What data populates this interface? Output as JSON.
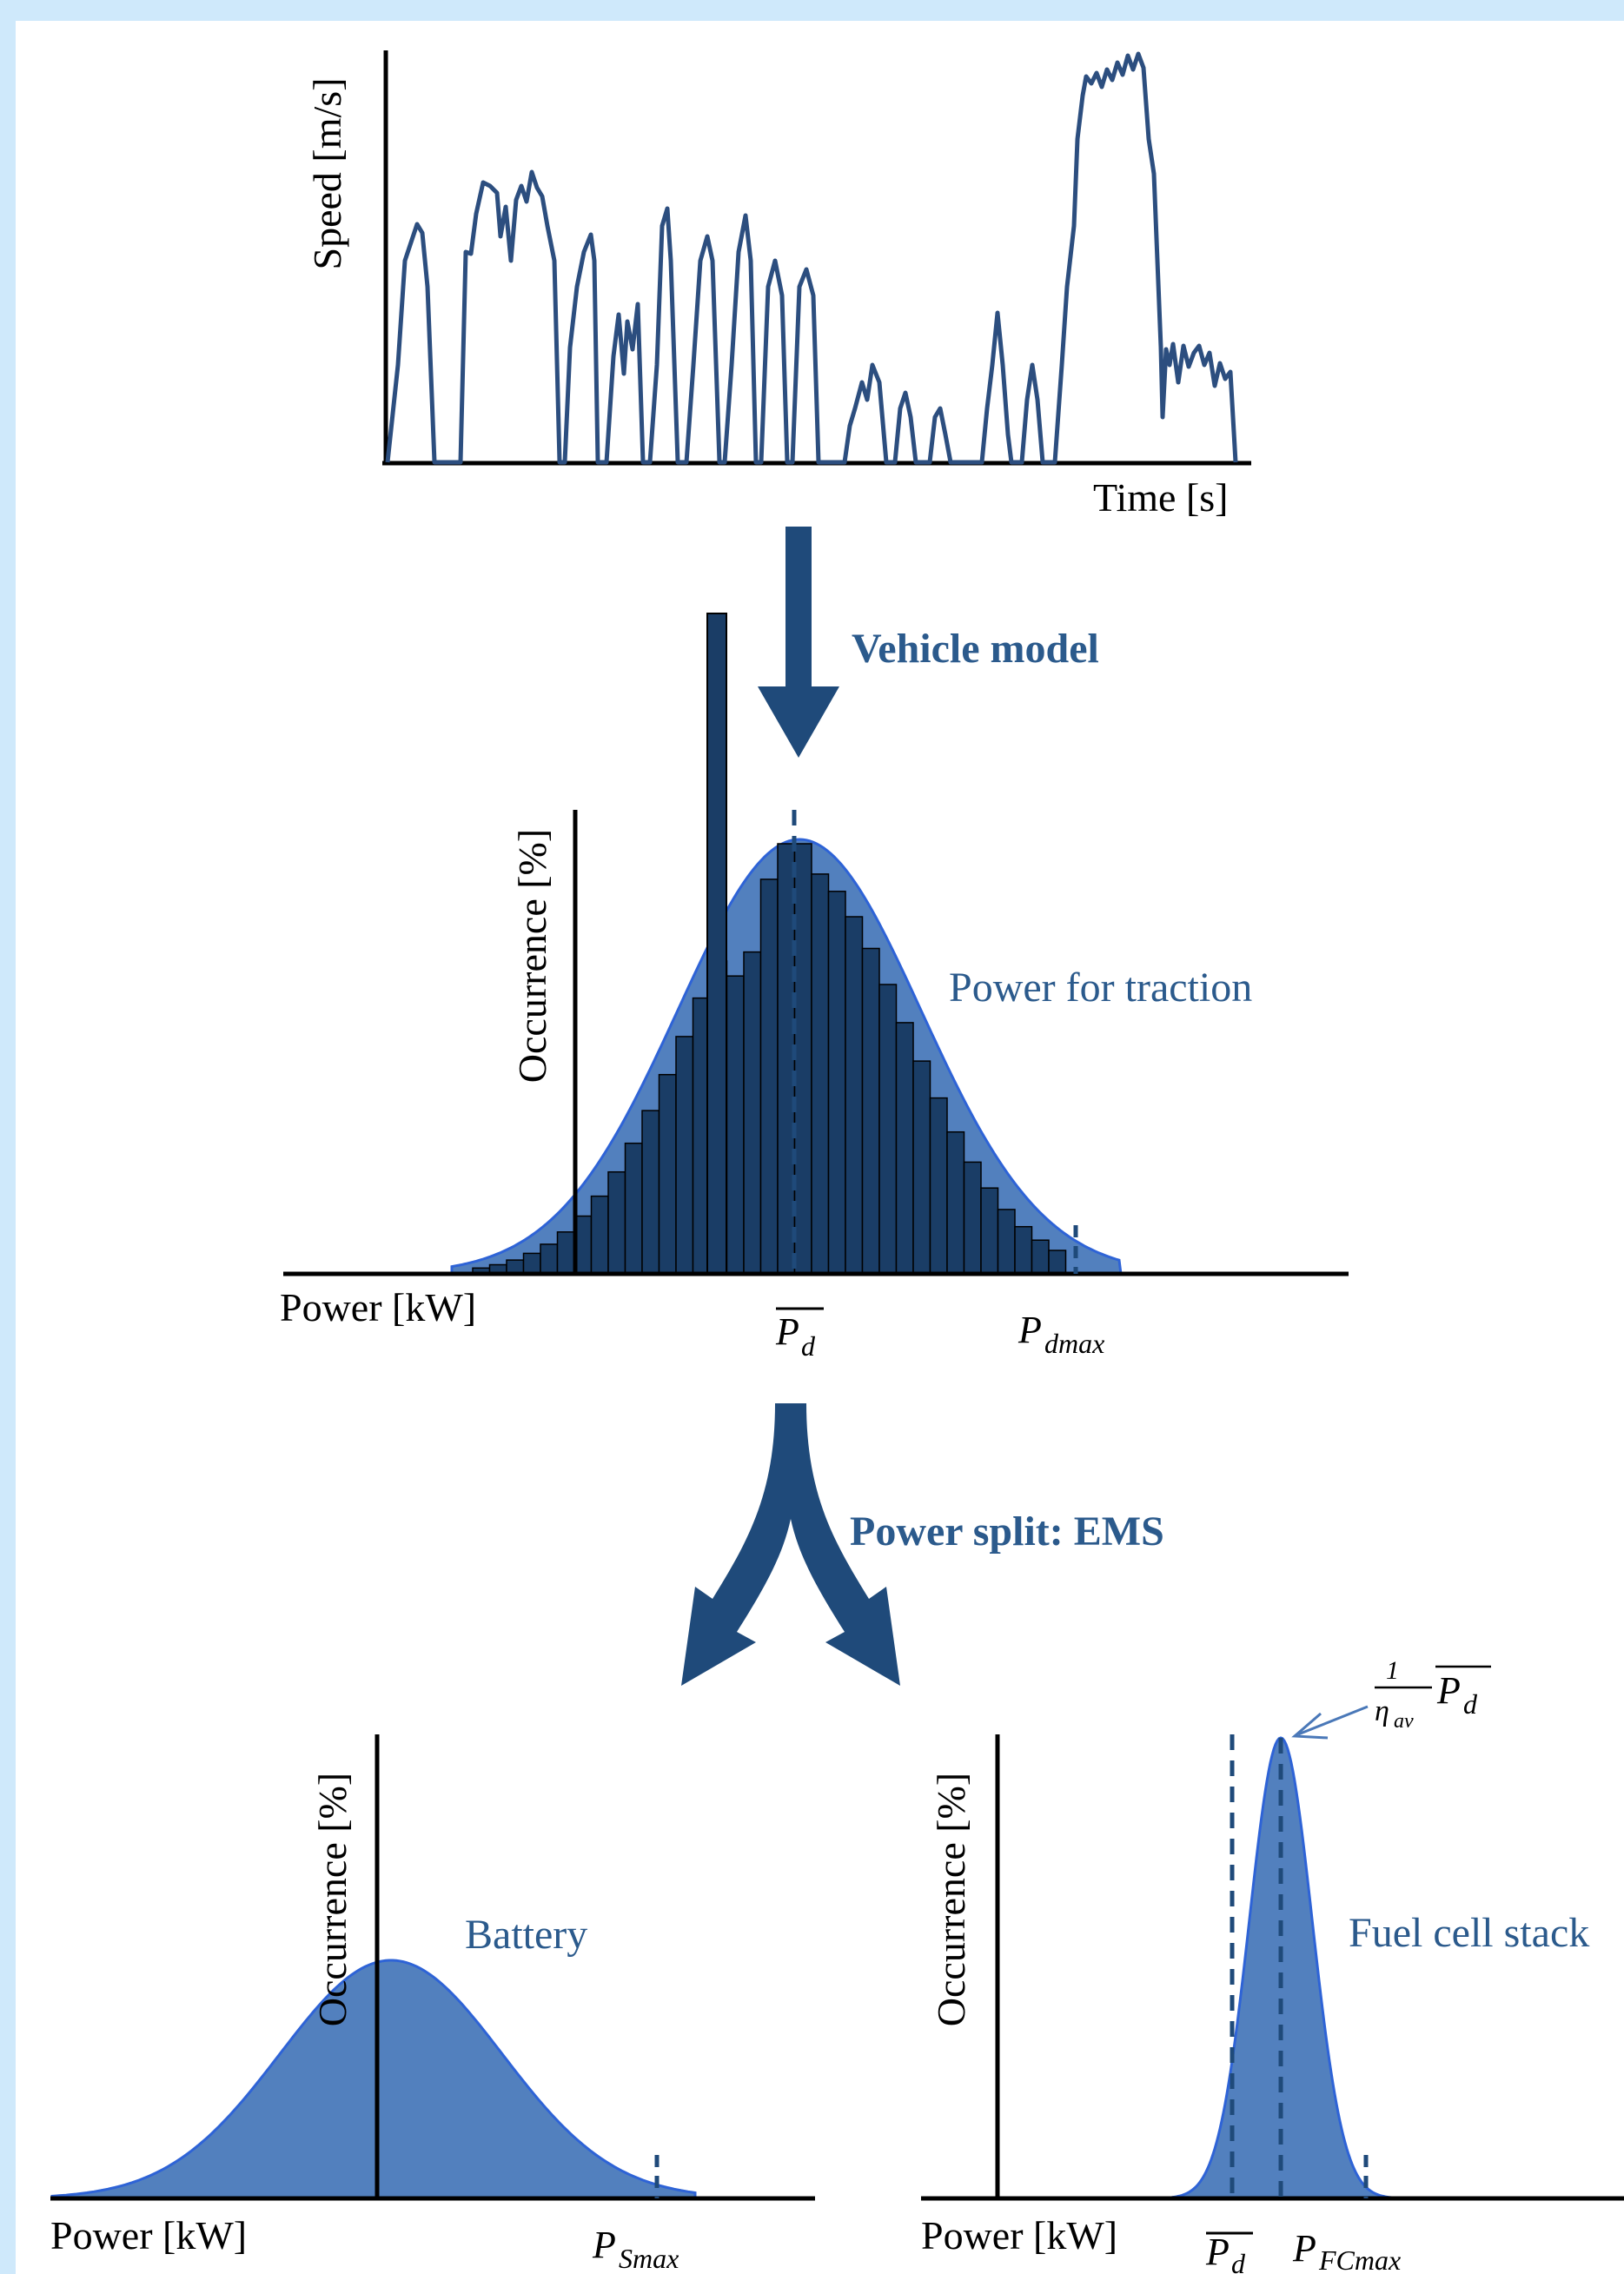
{
  "colors": {
    "border": "#cfe9fb",
    "curve": "#2c4e7f",
    "fill": "#5280be",
    "bar": "#1a3d66",
    "edge": "#2e63d6",
    "label": "#2b5a8c",
    "axis": "#000000"
  },
  "speed_panel": {
    "ylabel": "Speed [m/s]",
    "xlabel": "Time [s]"
  },
  "arrow1": {
    "label": "Vehicle model"
  },
  "traction_panel": {
    "ylabel": "Occurrence [%]",
    "xlabel": "Power [kW]",
    "curve_label": "Power for traction",
    "mean_label": "P_d (overline)",
    "max_label": "P_dmax"
  },
  "arrow2": {
    "label": "Power split: EMS"
  },
  "battery_panel": {
    "ylabel": "Occurrence [%]",
    "xlabel": "Power [kW]",
    "curve_label": "Battery",
    "max_label": "P_Smax"
  },
  "fuelcell_panel": {
    "ylabel": "Occurrence [%]",
    "xlabel": "Power [kW]",
    "curve_label": "Fuel cell stack",
    "mean_label": "P_d (overline)",
    "max_label": "P_FCmax",
    "peak_label": "(1/η_av) P_d (overline)"
  },
  "icons": [
    "down-arrow-icon",
    "split-arrow-icon"
  ]
}
